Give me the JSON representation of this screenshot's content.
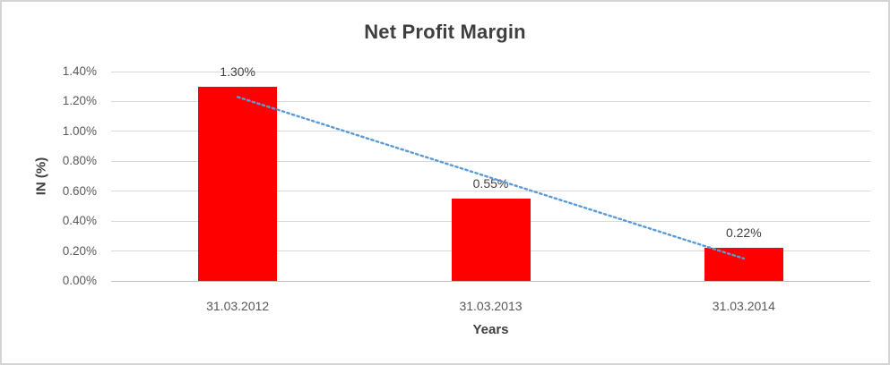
{
  "chart_data": {
    "type": "bar",
    "title": "Net Profit Margin",
    "xlabel": "Years",
    "ylabel": "IN (%)",
    "categories": [
      "31.03.2012",
      "31.03.2013",
      "31.03.2014"
    ],
    "values": [
      1.3,
      0.55,
      0.22
    ],
    "data_labels": [
      "1.30%",
      "0.55%",
      "0.22%"
    ],
    "ylim": [
      0,
      1.4
    ],
    "ytick_step": 0.2,
    "ytick_labels": [
      "0.00%",
      "0.20%",
      "0.40%",
      "0.60%",
      "0.80%",
      "1.00%",
      "1.20%",
      "1.40%"
    ],
    "grid": true,
    "legend_position": "none",
    "bar_color": "#ff0000",
    "gridline_color": "#d9d9d9",
    "title_color": "#3f3f3f",
    "tick_label_color": "#595959",
    "trendline": {
      "type": "linear",
      "style": "dotted",
      "color": "#5b9bd5",
      "start_value": 1.23,
      "end_value": 0.15
    }
  }
}
